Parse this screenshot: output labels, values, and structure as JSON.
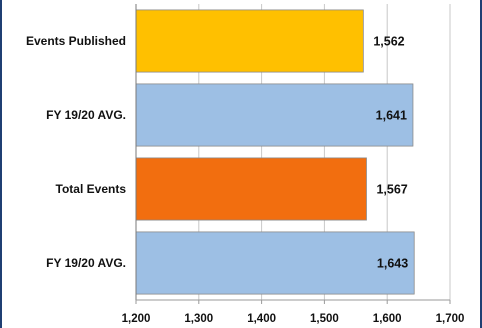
{
  "chart_data": {
    "type": "bar",
    "orientation": "horizontal",
    "categories": [
      "Events Published",
      "FY 19/20 AVG.",
      "Total Events",
      "FY 19/20 AVG."
    ],
    "values": [
      1562,
      1641,
      1567,
      1643
    ],
    "data_labels": [
      "1,562",
      "1,641",
      "1,567",
      "1,643"
    ],
    "bar_colors": [
      "#ffc000",
      "#9dbfe4",
      "#f26e0f",
      "#9dbfe4"
    ],
    "data_label_position": [
      "outside",
      "inside",
      "outside",
      "inside"
    ],
    "xlim": [
      1200,
      1700
    ],
    "xticks": [
      1200,
      1300,
      1400,
      1500,
      1600,
      1700
    ],
    "xtick_labels": [
      "1,200",
      "1,300",
      "1,400",
      "1,500",
      "1,600",
      "1,700"
    ],
    "grid": "vertical",
    "legend": "none",
    "title": "",
    "xlabel": "",
    "ylabel": ""
  }
}
